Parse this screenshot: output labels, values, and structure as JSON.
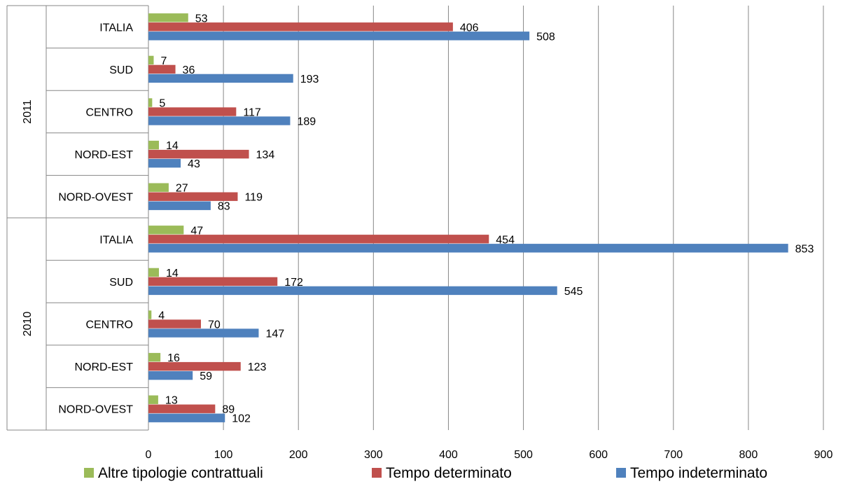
{
  "chart_data": {
    "type": "bar",
    "orientation": "horizontal",
    "title": "",
    "xlabel": "",
    "ylabel": "",
    "xlim": [
      0,
      900
    ],
    "x_ticks": [
      "0",
      "100",
      "200",
      "300",
      "400",
      "500",
      "600",
      "700",
      "800",
      "900"
    ],
    "grid": "vertical",
    "legend_position": "bottom",
    "groups": [
      {
        "label": "2011",
        "categories": [
          "ITALIA",
          "SUD",
          "CENTRO",
          "NORD-EST",
          "NORD-OVEST"
        ]
      },
      {
        "label": "2010",
        "categories": [
          "ITALIA",
          "SUD",
          "CENTRO",
          "NORD-EST",
          "NORD-OVEST"
        ]
      }
    ],
    "series": [
      {
        "name": "Altre tipologie contrattuali",
        "color": "#9BBB59",
        "values": [
          53,
          7,
          5,
          14,
          27,
          47,
          14,
          4,
          16,
          13
        ]
      },
      {
        "name": "Tempo determinato",
        "color": "#C0504D",
        "values": [
          406,
          36,
          117,
          134,
          119,
          454,
          172,
          70,
          123,
          89
        ]
      },
      {
        "name": "Tempo indeterminato",
        "color": "#4F81BD",
        "values": [
          508,
          193,
          189,
          43,
          83,
          853,
          545,
          147,
          59,
          102
        ]
      }
    ]
  }
}
